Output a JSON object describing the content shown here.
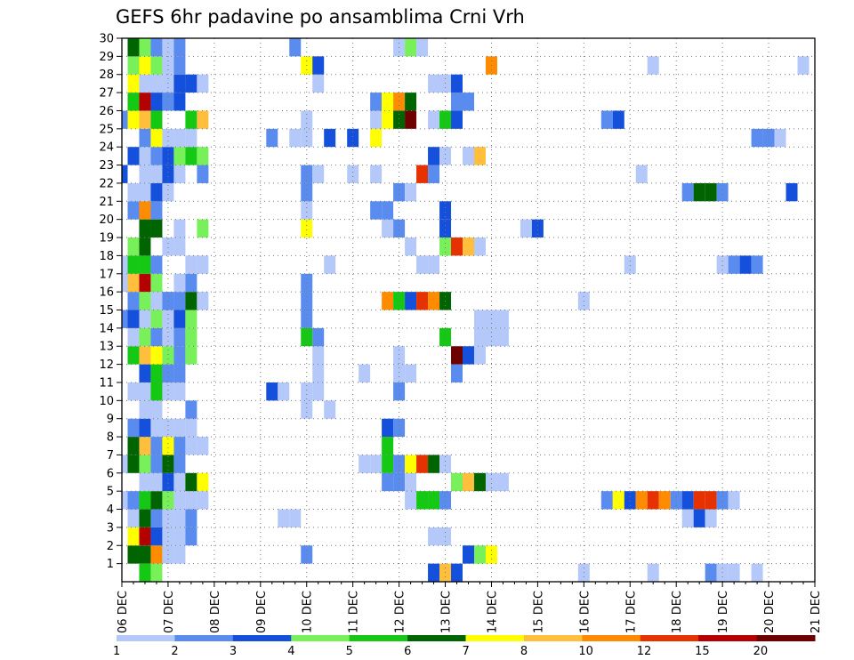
{
  "chart_data": {
    "type": "heatmap",
    "title": "GEFS 6hr padavine po ansamblima Crni Vrh",
    "xlabel": "",
    "ylabel": "",
    "grid": true,
    "x_tick_labels": [
      "06 DEC",
      "07 DEC",
      "08 DEC",
      "09 DEC",
      "10 DEC",
      "11 DEC",
      "12 DEC",
      "13 DEC",
      "14 DEC",
      "15 DEC",
      "16 DEC",
      "17 DEC",
      "18 DEC",
      "19 DEC",
      "20 DEC",
      "21 DEC"
    ],
    "y_tick_labels": [
      "1",
      "2",
      "3",
      "4",
      "5",
      "6",
      "7",
      "8",
      "9",
      "10",
      "11",
      "12",
      "13",
      "14",
      "15",
      "16",
      "17",
      "18",
      "19",
      "20",
      "21",
      "22",
      "23",
      "24",
      "25",
      "26",
      "27",
      "28",
      "29",
      "30"
    ],
    "time_steps_per_day": 4,
    "n_time_steps": 61,
    "n_members": 30,
    "colorbar": {
      "labels": [
        "1",
        "2",
        "3",
        "4",
        "5",
        "6",
        "7",
        "8",
        "10",
        "12",
        "15",
        "20"
      ],
      "colors": [
        "#b4c8fa",
        "#5a8cf0",
        "#1450dc",
        "#78f05a",
        "#14c814",
        "#006400",
        "#ffff00",
        "#ffbe3c",
        "#ff8c00",
        "#e63200",
        "#b40000",
        "#6e0000"
      ]
    },
    "cells": [
      [
        1,
        1,
        5
      ],
      [
        1,
        2,
        5
      ],
      [
        1,
        3,
        8
      ],
      [
        1,
        4,
        0
      ],
      [
        1,
        5,
        0
      ],
      [
        1,
        16,
        1
      ],
      [
        1,
        30,
        2
      ],
      [
        1,
        31,
        3
      ],
      [
        1,
        32,
        6
      ],
      [
        2,
        1,
        6
      ],
      [
        2,
        2,
        10
      ],
      [
        2,
        3,
        2
      ],
      [
        2,
        4,
        0
      ],
      [
        2,
        5,
        0
      ],
      [
        2,
        6,
        1
      ],
      [
        2,
        27,
        0
      ],
      [
        2,
        28,
        0
      ],
      [
        3,
        1,
        0
      ],
      [
        3,
        2,
        5
      ],
      [
        3,
        3,
        1
      ],
      [
        3,
        4,
        0
      ],
      [
        3,
        5,
        0
      ],
      [
        3,
        6,
        1
      ],
      [
        3,
        14,
        0
      ],
      [
        3,
        15,
        0
      ],
      [
        3,
        49,
        0
      ],
      [
        3,
        50,
        2
      ],
      [
        3,
        51,
        0
      ],
      [
        4,
        0,
        0
      ],
      [
        4,
        1,
        1
      ],
      [
        4,
        2,
        4
      ],
      [
        4,
        3,
        5
      ],
      [
        4,
        4,
        3
      ],
      [
        4,
        5,
        0
      ],
      [
        4,
        6,
        0
      ],
      [
        4,
        7,
        0
      ],
      [
        4,
        25,
        0
      ],
      [
        4,
        26,
        4
      ],
      [
        4,
        27,
        4
      ],
      [
        4,
        28,
        1
      ],
      [
        4,
        42,
        1
      ],
      [
        4,
        43,
        6
      ],
      [
        4,
        44,
        2
      ],
      [
        4,
        45,
        8
      ],
      [
        4,
        46,
        9
      ],
      [
        4,
        47,
        8
      ],
      [
        4,
        48,
        1
      ],
      [
        4,
        49,
        2
      ],
      [
        4,
        50,
        9
      ],
      [
        4,
        51,
        9
      ],
      [
        4,
        52,
        1
      ],
      [
        4,
        53,
        0
      ],
      [
        5,
        2,
        0
      ],
      [
        5,
        3,
        0
      ],
      [
        5,
        4,
        2
      ],
      [
        5,
        5,
        0
      ],
      [
        5,
        6,
        5
      ],
      [
        5,
        7,
        6
      ],
      [
        5,
        23,
        1
      ],
      [
        5,
        24,
        1
      ],
      [
        5,
        25,
        0
      ],
      [
        5,
        29,
        3
      ],
      [
        5,
        30,
        7
      ],
      [
        5,
        31,
        5
      ],
      [
        5,
        32,
        0
      ],
      [
        5,
        33,
        0
      ],
      [
        6,
        0,
        0
      ],
      [
        6,
        1,
        5
      ],
      [
        6,
        2,
        3
      ],
      [
        6,
        3,
        1
      ],
      [
        6,
        4,
        5
      ],
      [
        6,
        5,
        1
      ],
      [
        6,
        21,
        0
      ],
      [
        6,
        22,
        0
      ],
      [
        6,
        23,
        4
      ],
      [
        6,
        24,
        1
      ],
      [
        6,
        25,
        6
      ],
      [
        6,
        26,
        9
      ],
      [
        6,
        27,
        5
      ],
      [
        6,
        28,
        0
      ],
      [
        7,
        1,
        5
      ],
      [
        7,
        2,
        7
      ],
      [
        7,
        3,
        1
      ],
      [
        7,
        4,
        6
      ],
      [
        7,
        5,
        1
      ],
      [
        7,
        6,
        0
      ],
      [
        7,
        7,
        0
      ],
      [
        7,
        23,
        4
      ],
      [
        8,
        1,
        1
      ],
      [
        8,
        2,
        2
      ],
      [
        8,
        3,
        0
      ],
      [
        8,
        4,
        0
      ],
      [
        8,
        5,
        0
      ],
      [
        8,
        6,
        0
      ],
      [
        8,
        23,
        2
      ],
      [
        8,
        24,
        1
      ],
      [
        9,
        2,
        0
      ],
      [
        9,
        3,
        0
      ],
      [
        9,
        6,
        1
      ],
      [
        9,
        16,
        0
      ],
      [
        9,
        18,
        0
      ],
      [
        10,
        1,
        0
      ],
      [
        10,
        2,
        0
      ],
      [
        10,
        3,
        4
      ],
      [
        10,
        4,
        0
      ],
      [
        10,
        5,
        0
      ],
      [
        10,
        13,
        2
      ],
      [
        10,
        14,
        0
      ],
      [
        10,
        16,
        0
      ],
      [
        10,
        17,
        0
      ],
      [
        10,
        24,
        1
      ],
      [
        11,
        2,
        2
      ],
      [
        11,
        3,
        4
      ],
      [
        11,
        4,
        1
      ],
      [
        11,
        5,
        1
      ],
      [
        11,
        17,
        0
      ],
      [
        11,
        21,
        0
      ],
      [
        11,
        24,
        0
      ],
      [
        11,
        25,
        0
      ],
      [
        11,
        29,
        1
      ],
      [
        12,
        1,
        4
      ],
      [
        12,
        2,
        7
      ],
      [
        12,
        3,
        6
      ],
      [
        12,
        4,
        3
      ],
      [
        12,
        5,
        1
      ],
      [
        12,
        6,
        3
      ],
      [
        12,
        17,
        0
      ],
      [
        12,
        24,
        0
      ],
      [
        12,
        29,
        11
      ],
      [
        12,
        30,
        2
      ],
      [
        12,
        31,
        0
      ],
      [
        13,
        1,
        0
      ],
      [
        13,
        2,
        3
      ],
      [
        13,
        3,
        1
      ],
      [
        13,
        4,
        0
      ],
      [
        13,
        5,
        1
      ],
      [
        13,
        6,
        3
      ],
      [
        13,
        16,
        4
      ],
      [
        13,
        17,
        1
      ],
      [
        13,
        28,
        4
      ],
      [
        13,
        31,
        0
      ],
      [
        13,
        32,
        0
      ],
      [
        13,
        33,
        0
      ],
      [
        14,
        0,
        1
      ],
      [
        14,
        1,
        2
      ],
      [
        14,
        2,
        0
      ],
      [
        14,
        3,
        3
      ],
      [
        14,
        4,
        0
      ],
      [
        14,
        5,
        2
      ],
      [
        14,
        6,
        3
      ],
      [
        14,
        16,
        1
      ],
      [
        14,
        31,
        0
      ],
      [
        14,
        32,
        0
      ],
      [
        14,
        33,
        0
      ],
      [
        15,
        1,
        1
      ],
      [
        15,
        2,
        3
      ],
      [
        15,
        3,
        0
      ],
      [
        15,
        4,
        1
      ],
      [
        15,
        5,
        1
      ],
      [
        15,
        6,
        5
      ],
      [
        15,
        7,
        0
      ],
      [
        15,
        16,
        1
      ],
      [
        15,
        23,
        8
      ],
      [
        15,
        24,
        4
      ],
      [
        15,
        25,
        2
      ],
      [
        15,
        26,
        9
      ],
      [
        15,
        27,
        8
      ],
      [
        15,
        28,
        5
      ],
      [
        15,
        40,
        0
      ],
      [
        16,
        0,
        0
      ],
      [
        16,
        1,
        7
      ],
      [
        16,
        2,
        10
      ],
      [
        16,
        3,
        3
      ],
      [
        16,
        5,
        0
      ],
      [
        16,
        6,
        1
      ],
      [
        16,
        16,
        1
      ],
      [
        17,
        0,
        0
      ],
      [
        17,
        1,
        4
      ],
      [
        17,
        2,
        4
      ],
      [
        17,
        3,
        1
      ],
      [
        17,
        6,
        0
      ],
      [
        17,
        7,
        0
      ],
      [
        17,
        18,
        0
      ],
      [
        17,
        26,
        0
      ],
      [
        17,
        27,
        0
      ],
      [
        17,
        44,
        0
      ],
      [
        17,
        52,
        0
      ],
      [
        17,
        53,
        1
      ],
      [
        17,
        54,
        2
      ],
      [
        17,
        55,
        1
      ],
      [
        18,
        1,
        3
      ],
      [
        18,
        2,
        5
      ],
      [
        18,
        4,
        0
      ],
      [
        18,
        5,
        0
      ],
      [
        18,
        25,
        0
      ],
      [
        18,
        28,
        3
      ],
      [
        18,
        29,
        9
      ],
      [
        18,
        30,
        7
      ],
      [
        18,
        31,
        0
      ],
      [
        19,
        2,
        5
      ],
      [
        19,
        3,
        5
      ],
      [
        19,
        5,
        0
      ],
      [
        19,
        7,
        3
      ],
      [
        19,
        16,
        6
      ],
      [
        19,
        23,
        0
      ],
      [
        19,
        24,
        1
      ],
      [
        19,
        28,
        2
      ],
      [
        19,
        35,
        0
      ],
      [
        19,
        36,
        2
      ],
      [
        20,
        1,
        1
      ],
      [
        20,
        2,
        8
      ],
      [
        20,
        3,
        1
      ],
      [
        20,
        16,
        0
      ],
      [
        20,
        22,
        1
      ],
      [
        20,
        23,
        1
      ],
      [
        20,
        28,
        2
      ],
      [
        21,
        1,
        0
      ],
      [
        21,
        2,
        0
      ],
      [
        21,
        3,
        2
      ],
      [
        21,
        4,
        0
      ],
      [
        21,
        16,
        1
      ],
      [
        21,
        24,
        1
      ],
      [
        21,
        25,
        0
      ],
      [
        21,
        49,
        1
      ],
      [
        21,
        50,
        5
      ],
      [
        21,
        51,
        5
      ],
      [
        21,
        52,
        1
      ],
      [
        21,
        58,
        2
      ],
      [
        22,
        0,
        2
      ],
      [
        22,
        2,
        0
      ],
      [
        22,
        3,
        0
      ],
      [
        22,
        4,
        2
      ],
      [
        22,
        5,
        0
      ],
      [
        22,
        7,
        1
      ],
      [
        22,
        16,
        1
      ],
      [
        22,
        17,
        0
      ],
      [
        22,
        20,
        0
      ],
      [
        22,
        22,
        0
      ],
      [
        22,
        26,
        9
      ],
      [
        22,
        27,
        1
      ],
      [
        22,
        45,
        0
      ],
      [
        23,
        1,
        2
      ],
      [
        23,
        2,
        0
      ],
      [
        23,
        3,
        1
      ],
      [
        23,
        4,
        2
      ],
      [
        23,
        5,
        3
      ],
      [
        23,
        6,
        4
      ],
      [
        23,
        7,
        3
      ],
      [
        23,
        27,
        2
      ],
      [
        23,
        28,
        0
      ],
      [
        23,
        30,
        0
      ],
      [
        23,
        31,
        7
      ],
      [
        24,
        2,
        1
      ],
      [
        24,
        3,
        6
      ],
      [
        24,
        4,
        0
      ],
      [
        24,
        5,
        0
      ],
      [
        24,
        6,
        0
      ],
      [
        24,
        13,
        1
      ],
      [
        24,
        15,
        0
      ],
      [
        24,
        16,
        0
      ],
      [
        24,
        18,
        2
      ],
      [
        24,
        20,
        2
      ],
      [
        24,
        22,
        6
      ],
      [
        24,
        55,
        1
      ],
      [
        24,
        56,
        1
      ],
      [
        24,
        57,
        0
      ],
      [
        25,
        0,
        1
      ],
      [
        25,
        1,
        6
      ],
      [
        25,
        2,
        7
      ],
      [
        25,
        3,
        4
      ],
      [
        25,
        6,
        4
      ],
      [
        25,
        7,
        7
      ],
      [
        25,
        16,
        0
      ],
      [
        25,
        22,
        0
      ],
      [
        25,
        23,
        6
      ],
      [
        25,
        24,
        5
      ],
      [
        25,
        25,
        11
      ],
      [
        25,
        27,
        0
      ],
      [
        25,
        28,
        4
      ],
      [
        25,
        29,
        2
      ],
      [
        25,
        42,
        1
      ],
      [
        25,
        43,
        2
      ],
      [
        26,
        1,
        4
      ],
      [
        26,
        2,
        10
      ],
      [
        26,
        3,
        2
      ],
      [
        26,
        4,
        1
      ],
      [
        26,
        5,
        2
      ],
      [
        26,
        22,
        1
      ],
      [
        26,
        23,
        6
      ],
      [
        26,
        24,
        8
      ],
      [
        26,
        25,
        5
      ],
      [
        26,
        29,
        1
      ],
      [
        26,
        30,
        1
      ],
      [
        27,
        1,
        6
      ],
      [
        27,
        2,
        0
      ],
      [
        27,
        3,
        0
      ],
      [
        27,
        4,
        0
      ],
      [
        27,
        5,
        2
      ],
      [
        27,
        6,
        2
      ],
      [
        27,
        7,
        0
      ],
      [
        27,
        17,
        0
      ],
      [
        27,
        27,
        0
      ],
      [
        27,
        28,
        0
      ],
      [
        27,
        29,
        2
      ],
      [
        28,
        1,
        3
      ],
      [
        28,
        2,
        6
      ],
      [
        28,
        3,
        3
      ],
      [
        28,
        4,
        0
      ],
      [
        28,
        5,
        1
      ],
      [
        28,
        16,
        6
      ],
      [
        28,
        17,
        2
      ],
      [
        28,
        32,
        8
      ],
      [
        28,
        46,
        0
      ],
      [
        28,
        59,
        0
      ],
      [
        29,
        1,
        5
      ],
      [
        29,
        2,
        3
      ],
      [
        29,
        3,
        1
      ],
      [
        29,
        4,
        0
      ],
      [
        29,
        5,
        1
      ],
      [
        29,
        15,
        1
      ],
      [
        29,
        24,
        0
      ],
      [
        29,
        25,
        3
      ],
      [
        29,
        26,
        0
      ],
      [
        30,
        1,
        0
      ],
      [
        30,
        2,
        0
      ],
      [
        30,
        6,
        2
      ],
      [
        30,
        14,
        0
      ],
      [
        30,
        23,
        0
      ],
      [
        30,
        30,
        1
      ],
      [
        0,
        3,
        3
      ],
      [
        0,
        2,
        4
      ],
      [
        0,
        27,
        2
      ],
      [
        0,
        28,
        7
      ],
      [
        0,
        29,
        2
      ],
      [
        0,
        40,
        0
      ],
      [
        0,
        46,
        0
      ],
      [
        0,
        51,
        1
      ],
      [
        0,
        52,
        0
      ],
      [
        0,
        53,
        0
      ],
      [
        0,
        55,
        0
      ]
    ]
  }
}
